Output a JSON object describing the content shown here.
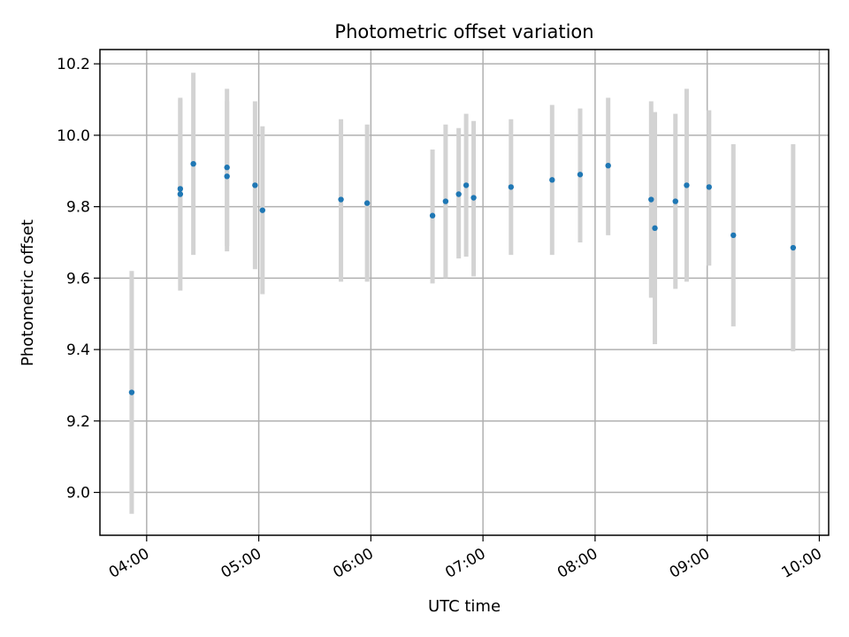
{
  "chart_data": {
    "type": "scatter",
    "title": "Photometric offset variation",
    "xlabel": "UTC time",
    "ylabel": "Photometric offset",
    "xlim": [
      "03:35",
      "10:05"
    ],
    "ylim": [
      8.88,
      10.24
    ],
    "x_ticks": [
      "04:00",
      "05:00",
      "06:00",
      "07:00",
      "08:00",
      "09:00",
      "10:00"
    ],
    "y_ticks": [
      "9.0",
      "9.2",
      "9.4",
      "9.6",
      "9.8",
      "10.0",
      "10.2"
    ],
    "grid": true,
    "colors": {
      "point": "#1f77b4",
      "errorbar": "#d3d3d3",
      "grid": "#b0b0b0"
    },
    "points": [
      {
        "x": "03:52",
        "y": 9.28,
        "yerr_low": 8.94,
        "yerr_high": 9.62
      },
      {
        "x": "04:18",
        "y": 9.835,
        "yerr_low": 9.565,
        "yerr_high": 10.105
      },
      {
        "x": "04:18",
        "y": 9.85,
        "yerr_low": 9.6,
        "yerr_high": 10.1
      },
      {
        "x": "04:25",
        "y": 9.92,
        "yerr_low": 9.665,
        "yerr_high": 10.175
      },
      {
        "x": "04:43",
        "y": 9.91,
        "yerr_low": 9.69,
        "yerr_high": 10.13
      },
      {
        "x": "04:43",
        "y": 9.885,
        "yerr_low": 9.675,
        "yerr_high": 10.095
      },
      {
        "x": "04:58",
        "y": 9.86,
        "yerr_low": 9.625,
        "yerr_high": 10.095
      },
      {
        "x": "05:02",
        "y": 9.79,
        "yerr_low": 9.555,
        "yerr_high": 10.025
      },
      {
        "x": "05:44",
        "y": 9.82,
        "yerr_low": 9.59,
        "yerr_high": 10.045
      },
      {
        "x": "05:58",
        "y": 9.81,
        "yerr_low": 9.59,
        "yerr_high": 10.03
      },
      {
        "x": "06:33",
        "y": 9.775,
        "yerr_low": 9.585,
        "yerr_high": 9.96
      },
      {
        "x": "06:40",
        "y": 9.815,
        "yerr_low": 9.6,
        "yerr_high": 10.03
      },
      {
        "x": "06:47",
        "y": 9.835,
        "yerr_low": 9.655,
        "yerr_high": 10.02
      },
      {
        "x": "06:51",
        "y": 9.86,
        "yerr_low": 9.66,
        "yerr_high": 10.06
      },
      {
        "x": "06:55",
        "y": 9.825,
        "yerr_low": 9.605,
        "yerr_high": 10.04
      },
      {
        "x": "07:15",
        "y": 9.855,
        "yerr_low": 9.665,
        "yerr_high": 10.045
      },
      {
        "x": "07:37",
        "y": 9.875,
        "yerr_low": 9.665,
        "yerr_high": 10.085
      },
      {
        "x": "07:52",
        "y": 9.89,
        "yerr_low": 9.7,
        "yerr_high": 10.075
      },
      {
        "x": "08:07",
        "y": 9.915,
        "yerr_low": 9.72,
        "yerr_high": 10.105
      },
      {
        "x": "08:30",
        "y": 9.82,
        "yerr_low": 9.545,
        "yerr_high": 10.095
      },
      {
        "x": "08:32",
        "y": 9.74,
        "yerr_low": 9.415,
        "yerr_high": 10.065
      },
      {
        "x": "08:43",
        "y": 9.815,
        "yerr_low": 9.57,
        "yerr_high": 10.06
      },
      {
        "x": "08:49",
        "y": 9.86,
        "yerr_low": 9.59,
        "yerr_high": 10.13
      },
      {
        "x": "09:01",
        "y": 9.855,
        "yerr_low": 9.635,
        "yerr_high": 10.07
      },
      {
        "x": "09:14",
        "y": 9.72,
        "yerr_low": 9.465,
        "yerr_high": 9.975
      },
      {
        "x": "09:46",
        "y": 9.685,
        "yerr_low": 9.395,
        "yerr_high": 9.975
      }
    ]
  }
}
